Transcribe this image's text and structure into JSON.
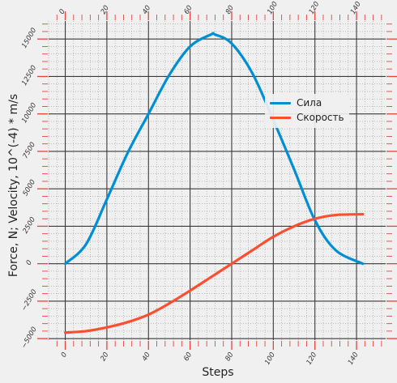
{
  "chart_data": {
    "type": "line",
    "title": "",
    "xlabel": "Steps",
    "ylabel": "Force, N; Velocity, 10^(-4) * m/s",
    "xlim": [
      -8,
      154
    ],
    "ylim": [
      -5100,
      16200
    ],
    "x_ticks": [
      0,
      20,
      40,
      60,
      80,
      100,
      120,
      140
    ],
    "y_ticks": [
      -5000,
      -2500,
      0,
      2500,
      5000,
      7500,
      10000,
      12500,
      15000
    ],
    "y_tick_labels": [
      "−5000",
      "−2500",
      "0",
      "2500",
      "5000",
      "7500",
      "10000",
      "12500",
      "15000"
    ],
    "grid": true,
    "legend_position": "upper-right",
    "series": [
      {
        "name": "Сила",
        "color": "#008fd5",
        "x": [
          0,
          10,
          20,
          30,
          40,
          50,
          60,
          70,
          72,
          80,
          90,
          100,
          110,
          120,
          130,
          143
        ],
        "y": [
          0,
          1300,
          4300,
          7400,
          10000,
          12600,
          14500,
          15300,
          15300,
          14700,
          12700,
          9600,
          6300,
          2900,
          900,
          0
        ]
      },
      {
        "name": "Скорость",
        "color": "#fc4f30",
        "x": [
          0,
          10,
          20,
          30,
          40,
          50,
          60,
          70,
          80,
          90,
          100,
          110,
          120,
          130,
          143
        ],
        "y": [
          -4600,
          -4500,
          -4250,
          -3900,
          -3400,
          -2650,
          -1800,
          -900,
          0,
          900,
          1800,
          2500,
          3000,
          3250,
          3300
        ]
      }
    ]
  }
}
